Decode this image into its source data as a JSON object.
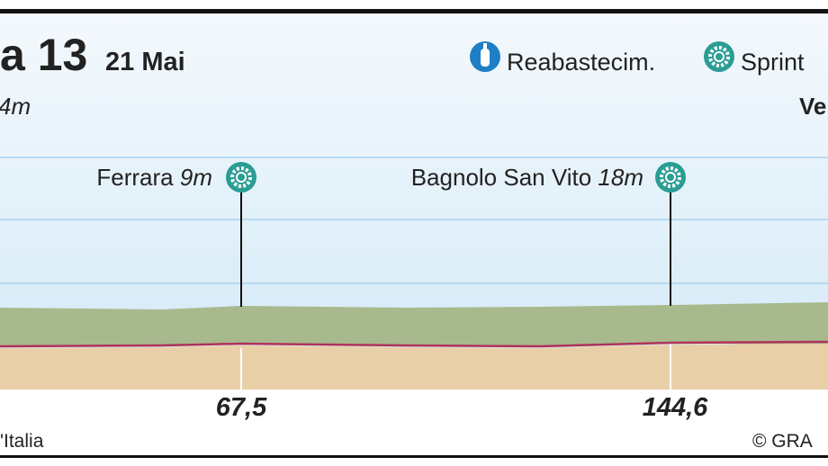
{
  "header": {
    "title": "a 13",
    "date": "21 Mai",
    "subtitle": "4m",
    "destination": "Ve"
  },
  "legend": [
    {
      "label": "Reabastecim."
    },
    {
      "label": "Sprint"
    }
  ],
  "points": [
    {
      "name": "Ferrara",
      "altitude": "9m",
      "km": "67,5"
    },
    {
      "name": "Bagnolo San Vito",
      "altitude": "18m",
      "km": "144,6"
    }
  ],
  "footer": {
    "source": "'Italia",
    "credit": "© GRA"
  }
}
